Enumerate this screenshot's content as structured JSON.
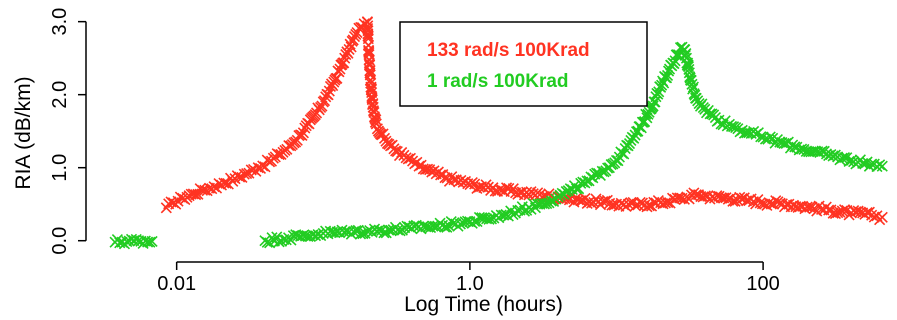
{
  "chart_data": {
    "type": "scatter",
    "title": "",
    "xlabel": "Log Time (hours)",
    "ylabel": "RIA (dB/km)",
    "xscale": "log10",
    "xlim": [
      0.003,
      700
    ],
    "ylim": [
      -0.1,
      3.05
    ],
    "xticks": [
      {
        "value": 0.01,
        "label": "0.01"
      },
      {
        "value": 1,
        "label": "1.0"
      },
      {
        "value": 100,
        "label": "100"
      }
    ],
    "yticks": [
      {
        "value": 0,
        "label": "0.0"
      },
      {
        "value": 1,
        "label": "1.0"
      },
      {
        "value": 2,
        "label": "2.0"
      },
      {
        "value": 3,
        "label": "3.0"
      }
    ],
    "grid": false,
    "legend": {
      "placement": "top-center",
      "boxed": true
    },
    "series": [
      {
        "name": "133 rad/s 100Krad",
        "color": "#ff3322",
        "marker": "x",
        "x": [
          0.0085,
          0.0095,
          0.011,
          0.013,
          0.015,
          0.018,
          0.021,
          0.025,
          0.03,
          0.036,
          0.043,
          0.05,
          0.06,
          0.07,
          0.08,
          0.09,
          0.1,
          0.11,
          0.12,
          0.13,
          0.14,
          0.15,
          0.16,
          0.17,
          0.18,
          0.19,
          0.2,
          0.205,
          0.21,
          0.215,
          0.22,
          0.23,
          0.25,
          0.28,
          0.32,
          0.38,
          0.45,
          0.55,
          0.7,
          0.9,
          1.2,
          1.6,
          2.2,
          3,
          4,
          5.5,
          7.5,
          10,
          14,
          20,
          28,
          35,
          45,
          60,
          80,
          110,
          150,
          200,
          280,
          400,
          550,
          650
        ],
        "y": [
          0.45,
          0.52,
          0.58,
          0.64,
          0.69,
          0.74,
          0.79,
          0.85,
          0.92,
          1.0,
          1.08,
          1.18,
          1.3,
          1.45,
          1.6,
          1.75,
          1.9,
          2.05,
          2.2,
          2.35,
          2.5,
          2.62,
          2.75,
          2.85,
          2.92,
          2.97,
          3.0,
          2.55,
          2.2,
          1.95,
          1.78,
          1.6,
          1.45,
          1.32,
          1.22,
          1.12,
          1.02,
          0.94,
          0.86,
          0.8,
          0.74,
          0.7,
          0.66,
          0.63,
          0.6,
          0.56,
          0.53,
          0.5,
          0.49,
          0.52,
          0.58,
          0.63,
          0.6,
          0.58,
          0.55,
          0.52,
          0.5,
          0.46,
          0.42,
          0.38,
          0.35,
          0.32
        ]
      },
      {
        "name": "1 rad/s 100Krad",
        "color": "#22cc22",
        "marker": "x",
        "x": [
          0.0038,
          0.0055,
          0.0068,
          0.04,
          0.058,
          0.07,
          0.085,
          0.1,
          0.12,
          0.15,
          0.2,
          0.25,
          0.3,
          0.4,
          0.5,
          0.65,
          0.8,
          1.0,
          1.3,
          1.7,
          2.2,
          3,
          4,
          5,
          6.5,
          8,
          10,
          12,
          14,
          17,
          20,
          23,
          26,
          28,
          29,
          30,
          32,
          35,
          40,
          50,
          65,
          80,
          100,
          130,
          170,
          220,
          300,
          400,
          550,
          650
        ],
        "y": [
          -0.02,
          0.0,
          -0.01,
          0.0,
          0.04,
          0.06,
          0.08,
          0.1,
          0.11,
          0.12,
          0.13,
          0.14,
          0.15,
          0.17,
          0.19,
          0.21,
          0.23,
          0.26,
          0.3,
          0.35,
          0.42,
          0.5,
          0.6,
          0.7,
          0.82,
          0.95,
          1.1,
          1.3,
          1.5,
          1.8,
          2.1,
          2.35,
          2.55,
          2.65,
          2.62,
          2.5,
          2.2,
          1.95,
          1.8,
          1.65,
          1.55,
          1.48,
          1.42,
          1.35,
          1.28,
          1.22,
          1.16,
          1.1,
          1.05,
          1.02
        ]
      }
    ]
  }
}
